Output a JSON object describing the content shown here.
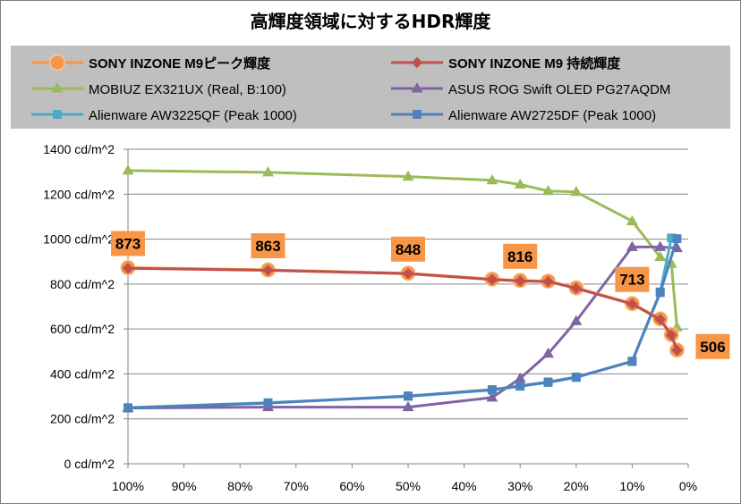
{
  "chart_data": {
    "type": "line",
    "title": "高輝度領域に対するHDR輝度",
    "xlabel": "",
    "ylabel": "",
    "x_axis": {
      "min": 0,
      "max": 100,
      "reversed": true,
      "ticks": [
        100,
        90,
        80,
        70,
        60,
        50,
        40,
        30,
        20,
        10,
        0
      ],
      "tick_labels": [
        "100%",
        "90%",
        "80%",
        "70%",
        "60%",
        "50%",
        "40%",
        "30%",
        "20%",
        "10%",
        "0%"
      ]
    },
    "y_axis": {
      "min": 0,
      "max": 1400,
      "ticks": [
        0,
        200,
        400,
        600,
        800,
        1000,
        1200,
        1400
      ],
      "tick_labels": [
        "0 cd/m^2",
        "200 cd/m^2",
        "400 cd/m^2",
        "600 cd/m^2",
        "800 cd/m^2",
        "1000 cd/m^2",
        "1200 cd/m^2",
        "1400 cd/m^2"
      ]
    },
    "grid": true,
    "legend_position": "top",
    "series": [
      {
        "name": "SONY INZONE M9ピーク輝度",
        "bold": true,
        "color": "#f79646",
        "line_color": "#f79646",
        "marker": "circle",
        "x": [
          100,
          75,
          50,
          35,
          30,
          25,
          20,
          10,
          5,
          3,
          2
        ],
        "y": [
          873,
          863,
          848,
          822,
          816,
          813,
          783,
          713,
          645,
          575,
          506
        ]
      },
      {
        "name": "SONY INZONE M9 持続輝度",
        "bold": true,
        "color": "#c0504d",
        "line_color": "#c0504d",
        "marker": "diamond",
        "x": [
          100,
          75,
          50,
          35,
          30,
          25,
          20,
          10,
          5,
          3,
          2
        ],
        "y": [
          870,
          861,
          846,
          820,
          814,
          811,
          781,
          711,
          642,
          572,
          505
        ]
      },
      {
        "name": "MOBIUZ EX321UX (Real, B:100)",
        "bold": false,
        "color": "#9bbb59",
        "line_color": "#9bbb59",
        "marker": "triangle",
        "x": [
          100,
          75,
          50,
          35,
          30,
          25,
          20,
          10,
          5,
          3,
          2
        ],
        "y": [
          1305,
          1297,
          1278,
          1262,
          1243,
          1214,
          1210,
          1080,
          920,
          890,
          608
        ]
      },
      {
        "name": "ASUS ROG Swift OLED PG27AQDM",
        "bold": false,
        "color": "#8064a2",
        "line_color": "#8064a2",
        "marker": "triangle",
        "x": [
          100,
          75,
          50,
          35,
          30,
          25,
          20,
          10,
          5,
          2
        ],
        "y": [
          248,
          252,
          252,
          295,
          380,
          490,
          635,
          965,
          965,
          960
        ]
      },
      {
        "name": "Alienware AW3225QF (Peak 1000)",
        "bold": false,
        "color": "#4bacc6",
        "line_color": "#4bacc6",
        "marker": "square",
        "x": [
          100,
          75,
          50,
          35,
          30,
          25,
          20,
          10,
          5,
          3
        ],
        "y": [
          250,
          272,
          300,
          328,
          345,
          362,
          384,
          457,
          765,
          1005
        ]
      },
      {
        "name": "Alienware AW2725DF (Peak 1000)",
        "bold": false,
        "color": "#4f81bd",
        "line_color": "#4f81bd",
        "marker": "square",
        "x": [
          100,
          75,
          50,
          35,
          30,
          25,
          20,
          10,
          5,
          2
        ],
        "y": [
          248,
          270,
          302,
          330,
          347,
          364,
          386,
          455,
          762,
          1002
        ]
      }
    ],
    "annotations": [
      {
        "text": "873",
        "value": 873,
        "x": 100
      },
      {
        "text": "863",
        "value": 863,
        "x": 75
      },
      {
        "text": "848",
        "value": 848,
        "x": 50
      },
      {
        "text": "816",
        "value": 816,
        "x": 30
      },
      {
        "text": "713",
        "value": 713,
        "x": 10
      },
      {
        "text": "506",
        "value": 506,
        "x": 2
      }
    ]
  }
}
